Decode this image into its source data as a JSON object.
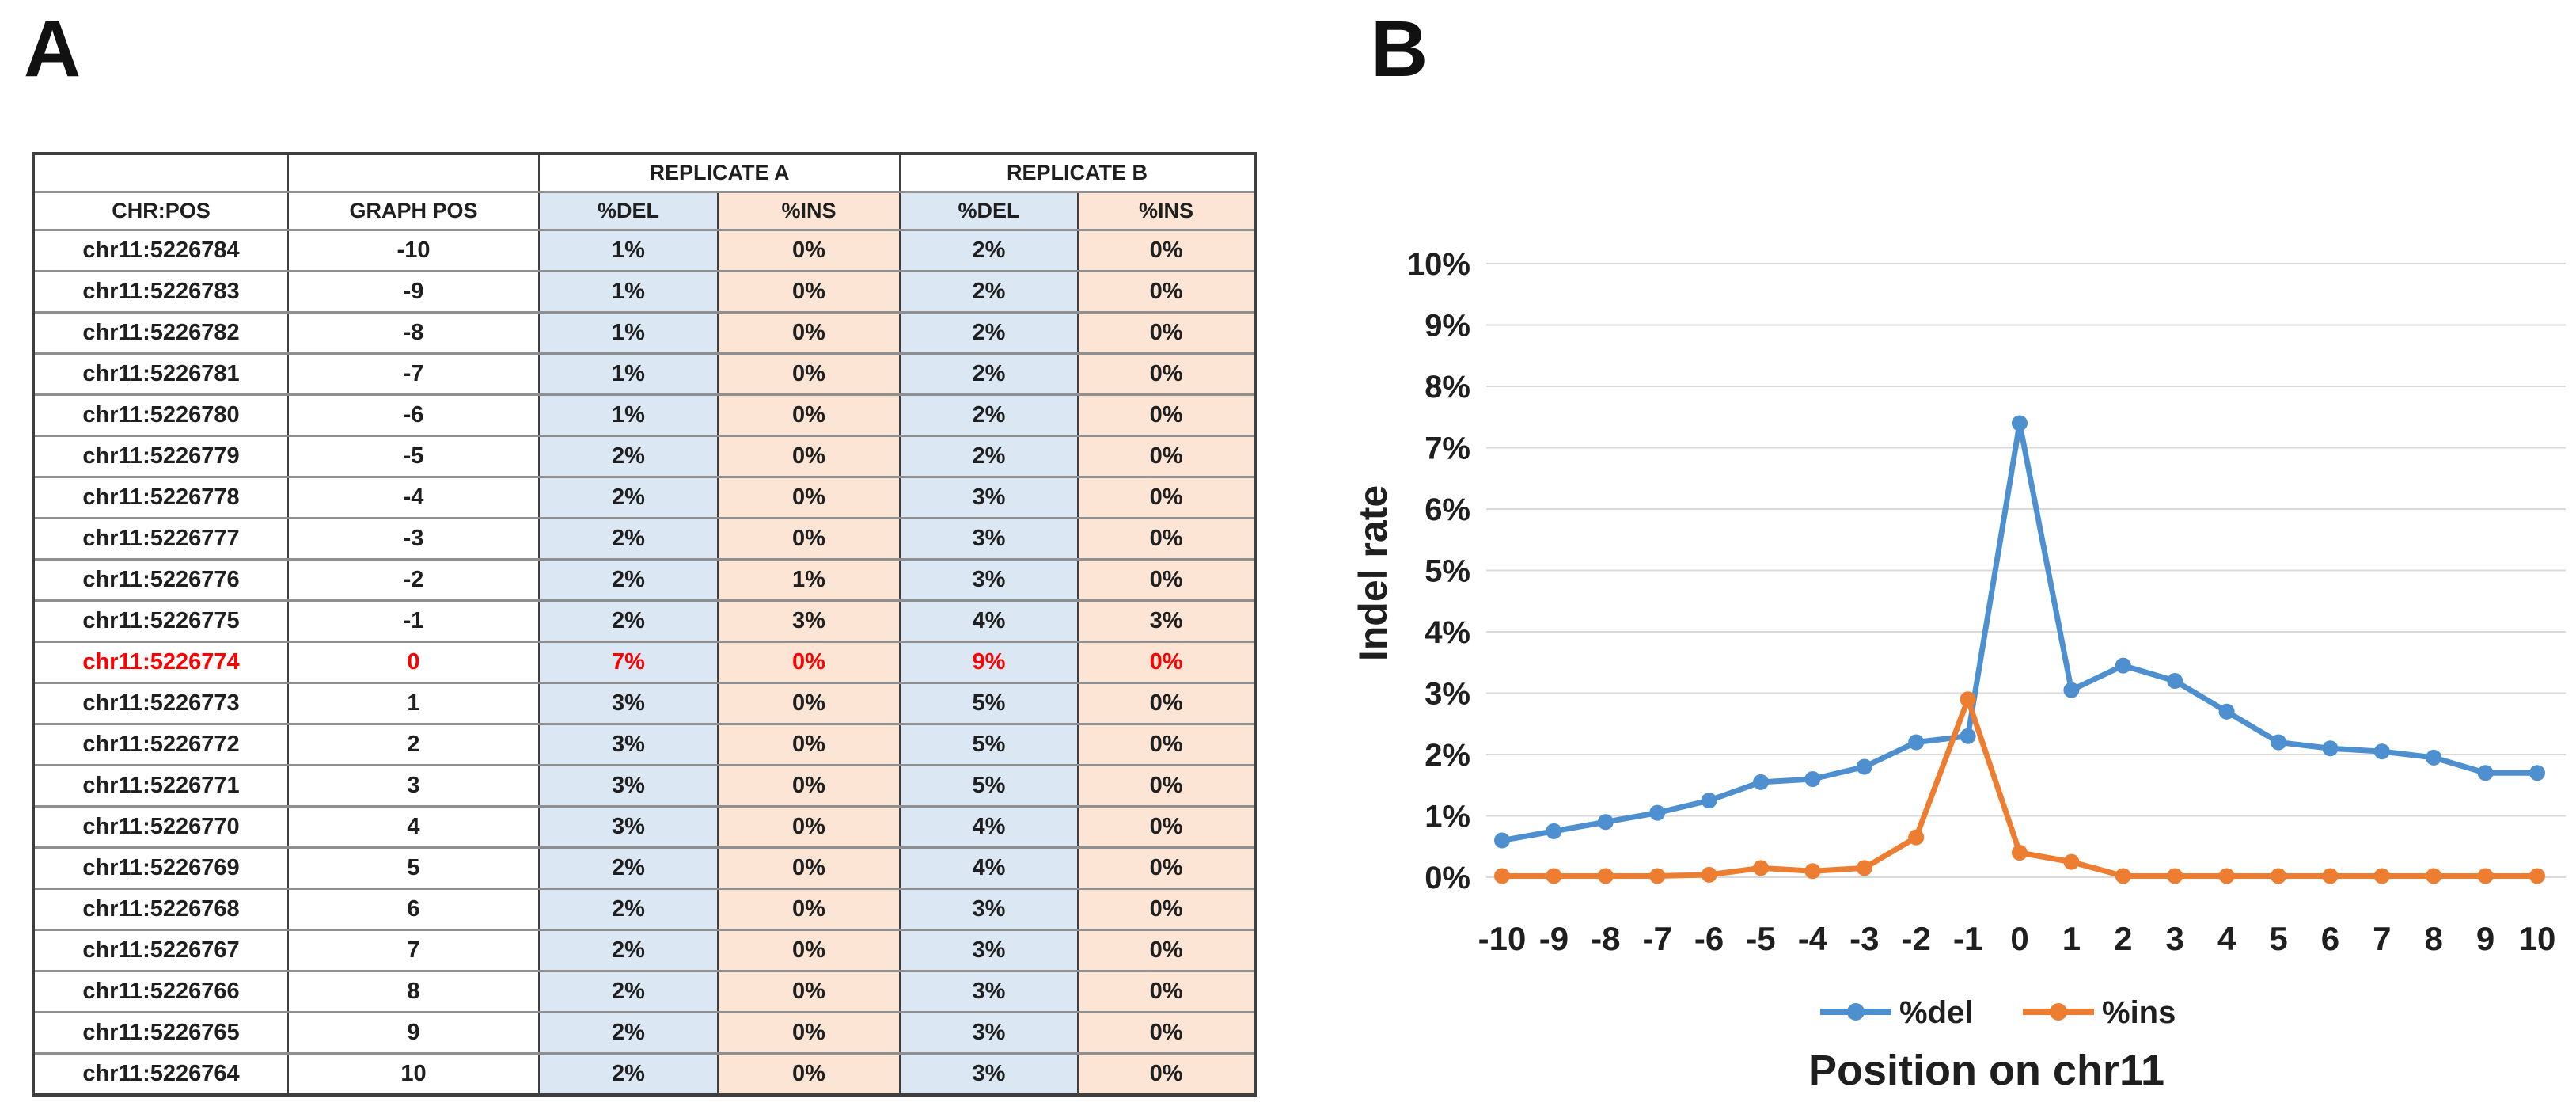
{
  "panels": {
    "a_label": "A",
    "b_label": "B"
  },
  "table": {
    "group_headers": [
      "REPLICATE A",
      "REPLICATE B"
    ],
    "columns": [
      "CHR:POS",
      "GRAPH POS",
      "%DEL",
      "%INS",
      "%DEL",
      "%INS"
    ],
    "colors": {
      "del_fill": "#dbe7f3",
      "ins_fill": "#fce5d5",
      "highlight_text": "#ff0000"
    },
    "rows": [
      {
        "chr_pos": "chr11:5226784",
        "graph_pos": "-10",
        "rep_a_del": "1%",
        "rep_a_ins": "0%",
        "rep_b_del": "2%",
        "rep_b_ins": "0%",
        "highlight": false
      },
      {
        "chr_pos": "chr11:5226783",
        "graph_pos": "-9",
        "rep_a_del": "1%",
        "rep_a_ins": "0%",
        "rep_b_del": "2%",
        "rep_b_ins": "0%",
        "highlight": false
      },
      {
        "chr_pos": "chr11:5226782",
        "graph_pos": "-8",
        "rep_a_del": "1%",
        "rep_a_ins": "0%",
        "rep_b_del": "2%",
        "rep_b_ins": "0%",
        "highlight": false
      },
      {
        "chr_pos": "chr11:5226781",
        "graph_pos": "-7",
        "rep_a_del": "1%",
        "rep_a_ins": "0%",
        "rep_b_del": "2%",
        "rep_b_ins": "0%",
        "highlight": false
      },
      {
        "chr_pos": "chr11:5226780",
        "graph_pos": "-6",
        "rep_a_del": "1%",
        "rep_a_ins": "0%",
        "rep_b_del": "2%",
        "rep_b_ins": "0%",
        "highlight": false
      },
      {
        "chr_pos": "chr11:5226779",
        "graph_pos": "-5",
        "rep_a_del": "2%",
        "rep_a_ins": "0%",
        "rep_b_del": "2%",
        "rep_b_ins": "0%",
        "highlight": false
      },
      {
        "chr_pos": "chr11:5226778",
        "graph_pos": "-4",
        "rep_a_del": "2%",
        "rep_a_ins": "0%",
        "rep_b_del": "3%",
        "rep_b_ins": "0%",
        "highlight": false
      },
      {
        "chr_pos": "chr11:5226777",
        "graph_pos": "-3",
        "rep_a_del": "2%",
        "rep_a_ins": "0%",
        "rep_b_del": "3%",
        "rep_b_ins": "0%",
        "highlight": false
      },
      {
        "chr_pos": "chr11:5226776",
        "graph_pos": "-2",
        "rep_a_del": "2%",
        "rep_a_ins": "1%",
        "rep_b_del": "3%",
        "rep_b_ins": "0%",
        "highlight": false
      },
      {
        "chr_pos": "chr11:5226775",
        "graph_pos": "-1",
        "rep_a_del": "2%",
        "rep_a_ins": "3%",
        "rep_b_del": "4%",
        "rep_b_ins": "3%",
        "highlight": false
      },
      {
        "chr_pos": "chr11:5226774",
        "graph_pos": "0",
        "rep_a_del": "7%",
        "rep_a_ins": "0%",
        "rep_b_del": "9%",
        "rep_b_ins": "0%",
        "highlight": true
      },
      {
        "chr_pos": "chr11:5226773",
        "graph_pos": "1",
        "rep_a_del": "3%",
        "rep_a_ins": "0%",
        "rep_b_del": "5%",
        "rep_b_ins": "0%",
        "highlight": false
      },
      {
        "chr_pos": "chr11:5226772",
        "graph_pos": "2",
        "rep_a_del": "3%",
        "rep_a_ins": "0%",
        "rep_b_del": "5%",
        "rep_b_ins": "0%",
        "highlight": false
      },
      {
        "chr_pos": "chr11:5226771",
        "graph_pos": "3",
        "rep_a_del": "3%",
        "rep_a_ins": "0%",
        "rep_b_del": "5%",
        "rep_b_ins": "0%",
        "highlight": false
      },
      {
        "chr_pos": "chr11:5226770",
        "graph_pos": "4",
        "rep_a_del": "3%",
        "rep_a_ins": "0%",
        "rep_b_del": "4%",
        "rep_b_ins": "0%",
        "highlight": false
      },
      {
        "chr_pos": "chr11:5226769",
        "graph_pos": "5",
        "rep_a_del": "2%",
        "rep_a_ins": "0%",
        "rep_b_del": "4%",
        "rep_b_ins": "0%",
        "highlight": false
      },
      {
        "chr_pos": "chr11:5226768",
        "graph_pos": "6",
        "rep_a_del": "2%",
        "rep_a_ins": "0%",
        "rep_b_del": "3%",
        "rep_b_ins": "0%",
        "highlight": false
      },
      {
        "chr_pos": "chr11:5226767",
        "graph_pos": "7",
        "rep_a_del": "2%",
        "rep_a_ins": "0%",
        "rep_b_del": "3%",
        "rep_b_ins": "0%",
        "highlight": false
      },
      {
        "chr_pos": "chr11:5226766",
        "graph_pos": "8",
        "rep_a_del": "2%",
        "rep_a_ins": "0%",
        "rep_b_del": "3%",
        "rep_b_ins": "0%",
        "highlight": false
      },
      {
        "chr_pos": "chr11:5226765",
        "graph_pos": "9",
        "rep_a_del": "2%",
        "rep_a_ins": "0%",
        "rep_b_del": "3%",
        "rep_b_ins": "0%",
        "highlight": false
      },
      {
        "chr_pos": "chr11:5226764",
        "graph_pos": "10",
        "rep_a_del": "2%",
        "rep_a_ins": "0%",
        "rep_b_del": "3%",
        "rep_b_ins": "0%",
        "highlight": false
      }
    ]
  },
  "chart_data": {
    "type": "line",
    "title": "",
    "xlabel": "Position on chr11",
    "ylabel": "Indel rate",
    "x": [
      -10,
      -9,
      -8,
      -7,
      -6,
      -5,
      -4,
      -3,
      -2,
      -1,
      0,
      1,
      2,
      3,
      4,
      5,
      6,
      7,
      8,
      9,
      10
    ],
    "series": [
      {
        "name": "%del",
        "color": "#4e8fd0",
        "values": [
          0.6,
          0.75,
          0.9,
          1.05,
          1.25,
          1.55,
          1.6,
          1.8,
          2.2,
          2.3,
          7.4,
          3.05,
          3.45,
          3.2,
          2.7,
          2.2,
          2.1,
          2.05,
          1.95,
          1.7,
          1.7
        ]
      },
      {
        "name": "%ins",
        "color": "#ed7d31",
        "values": [
          0.02,
          0.02,
          0.02,
          0.02,
          0.04,
          0.15,
          0.1,
          0.15,
          0.65,
          2.9,
          0.4,
          0.25,
          0.02,
          0.02,
          0.02,
          0.02,
          0.02,
          0.02,
          0.02,
          0.02,
          0.02
        ]
      }
    ],
    "ylim": [
      0,
      10
    ],
    "ytick_step": 1,
    "ytick_suffix": "%",
    "grid": true,
    "gridline_color": "#d9d9d9",
    "legend_position": "bottom"
  }
}
